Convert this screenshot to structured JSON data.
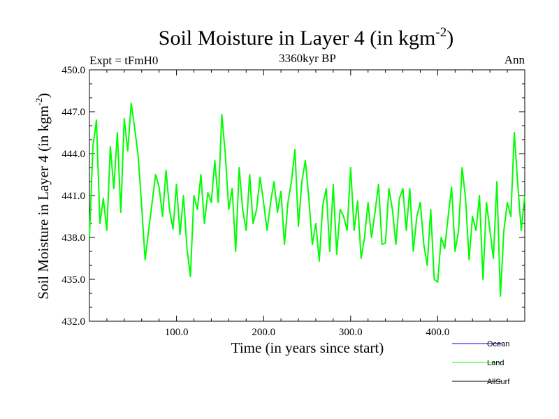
{
  "chart_data": {
    "type": "line",
    "title": "Soil Moisture in Layer 4 (in kgm",
    "title_sup": "-2",
    "title_close": ")",
    "subtitle": "3360kyr BP",
    "left_label": "Expt = tFmH0",
    "right_label": "Ann",
    "xlabel": "Time (in years since start)",
    "ylabel": "Soil Moisture in Layer 4 (in kgm",
    "ylabel_sup": "-2",
    "ylabel_close": ")",
    "xlim": [
      0,
      500
    ],
    "ylim": [
      432.0,
      450.0
    ],
    "xticks": [
      100,
      200,
      300,
      400
    ],
    "xtick_labels": [
      "100.0",
      "200.0",
      "300.0",
      "400.0"
    ],
    "yticks": [
      432,
      435,
      438,
      441,
      444,
      447,
      450
    ],
    "ytick_labels": [
      "432.0",
      "435.0",
      "438.0",
      "441.0",
      "444.0",
      "447.0",
      "450.0"
    ],
    "legend": [
      {
        "name": "Ocean",
        "color": "#0000ff"
      },
      {
        "name": "Land",
        "color": "#00ff00"
      },
      {
        "name": "AllSurf",
        "color": "#000000"
      }
    ],
    "series": [
      {
        "name": "Land",
        "color": "#00ff00",
        "x": [
          0,
          4,
          8,
          12,
          16,
          20,
          24,
          28,
          32,
          36,
          40,
          44,
          48,
          52,
          56,
          60,
          64,
          68,
          72,
          76,
          80,
          84,
          88,
          92,
          96,
          100,
          104,
          108,
          112,
          116,
          120,
          124,
          128,
          132,
          136,
          140,
          144,
          148,
          152,
          156,
          160,
          164,
          168,
          172,
          176,
          180,
          184,
          188,
          192,
          196,
          200,
          204,
          208,
          212,
          216,
          220,
          224,
          228,
          232,
          236,
          240,
          244,
          248,
          252,
          256,
          260,
          264,
          268,
          272,
          276,
          280,
          284,
          288,
          292,
          296,
          300,
          304,
          308,
          312,
          316,
          320,
          324,
          328,
          332,
          336,
          340,
          344,
          348,
          352,
          356,
          360,
          364,
          368,
          372,
          376,
          380,
          384,
          388,
          392,
          396,
          400,
          404,
          408,
          412,
          416,
          420,
          424,
          428,
          432,
          436,
          440,
          444,
          448,
          452,
          456,
          460,
          464,
          468,
          472,
          476,
          480,
          484,
          488,
          492,
          496,
          500
        ],
        "values": [
          438.0,
          444.5,
          446.4,
          439.0,
          440.8,
          438.5,
          444.5,
          441.5,
          445.5,
          439.8,
          446.5,
          444.2,
          447.6,
          445.8,
          443.8,
          440.2,
          436.4,
          438.5,
          440.5,
          442.5,
          441.6,
          439.5,
          442.8,
          440.0,
          438.6,
          441.8,
          438.2,
          441.0,
          437.2,
          435.2,
          441.0,
          440.0,
          442.5,
          439.0,
          441.2,
          440.5,
          443.5,
          440.5,
          446.8,
          444.0,
          440.0,
          441.5,
          437.0,
          443.0,
          440.0,
          438.5,
          442.5,
          439.0,
          440.0,
          442.3,
          440.5,
          438.5,
          440.5,
          442.0,
          439.8,
          441.3,
          437.5,
          440.5,
          442.0,
          444.3,
          438.8,
          442.0,
          443.5,
          440.8,
          437.5,
          439.0,
          436.3,
          440.3,
          441.5,
          437.0,
          441.8,
          436.8,
          440.0,
          439.5,
          438.5,
          443.0,
          438.5,
          440.6,
          436.5,
          438.0,
          440.5,
          438.0,
          439.8,
          441.8,
          437.5,
          437.6,
          441.5,
          440.0,
          437.5,
          440.8,
          441.5,
          438.5,
          441.5,
          437.0,
          439.5,
          440.5,
          437.5,
          436.0,
          440.0,
          435.0,
          434.8,
          438.0,
          437.2,
          439.5,
          441.6,
          437.0,
          438.5,
          443.0,
          440.8,
          436.4,
          439.5,
          438.5,
          441.0,
          435.0,
          440.5,
          438.5,
          436.5,
          442.0,
          433.8,
          438.5,
          440.5,
          439.5,
          445.5,
          441.8,
          438.5,
          441.0
        ]
      }
    ]
  }
}
